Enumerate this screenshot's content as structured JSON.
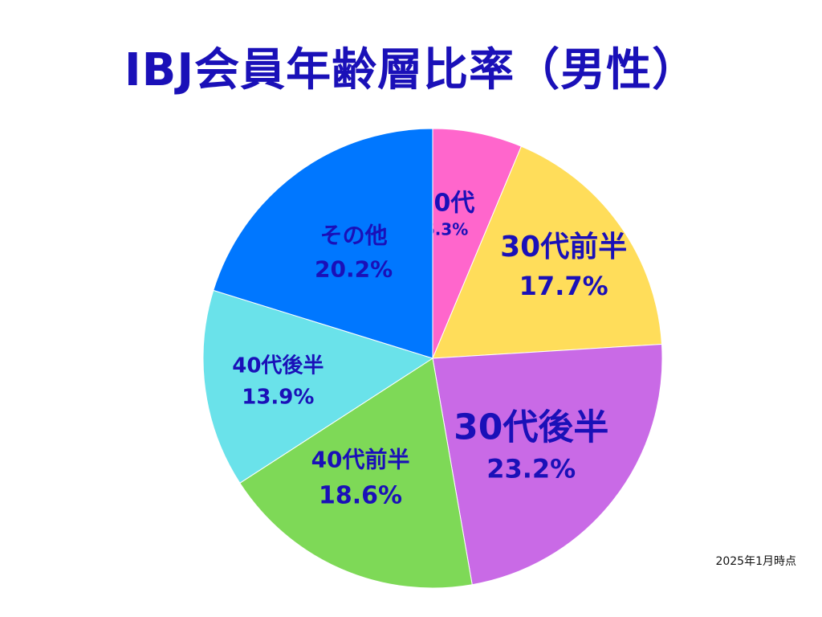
{
  "chart_data": {
    "type": "pie",
    "title": "IBJ会員年齢層比率（男性）",
    "note": "2025年1月時点",
    "start_angle_deg": 0,
    "direction": "clockwise",
    "slices": [
      {
        "label": "20代",
        "value": 6.3,
        "value_label": "6.3%",
        "color": "#ff66cc"
      },
      {
        "label": "30代前半",
        "value": 17.7,
        "value_label": "17.7%",
        "color": "#ffdd5a"
      },
      {
        "label": "30代後半",
        "value": 23.2,
        "value_label": "23.2%",
        "color": "#c96ae6"
      },
      {
        "label": "40代前半",
        "value": 18.6,
        "value_label": "18.6%",
        "color": "#7ed957"
      },
      {
        "label": "40代後半",
        "value": 13.9,
        "value_label": "13.9%",
        "color": "#6ae2ea"
      },
      {
        "label": "その他",
        "value": 20.2,
        "value_label": "20.2%",
        "color": "#0077ff"
      }
    ]
  }
}
